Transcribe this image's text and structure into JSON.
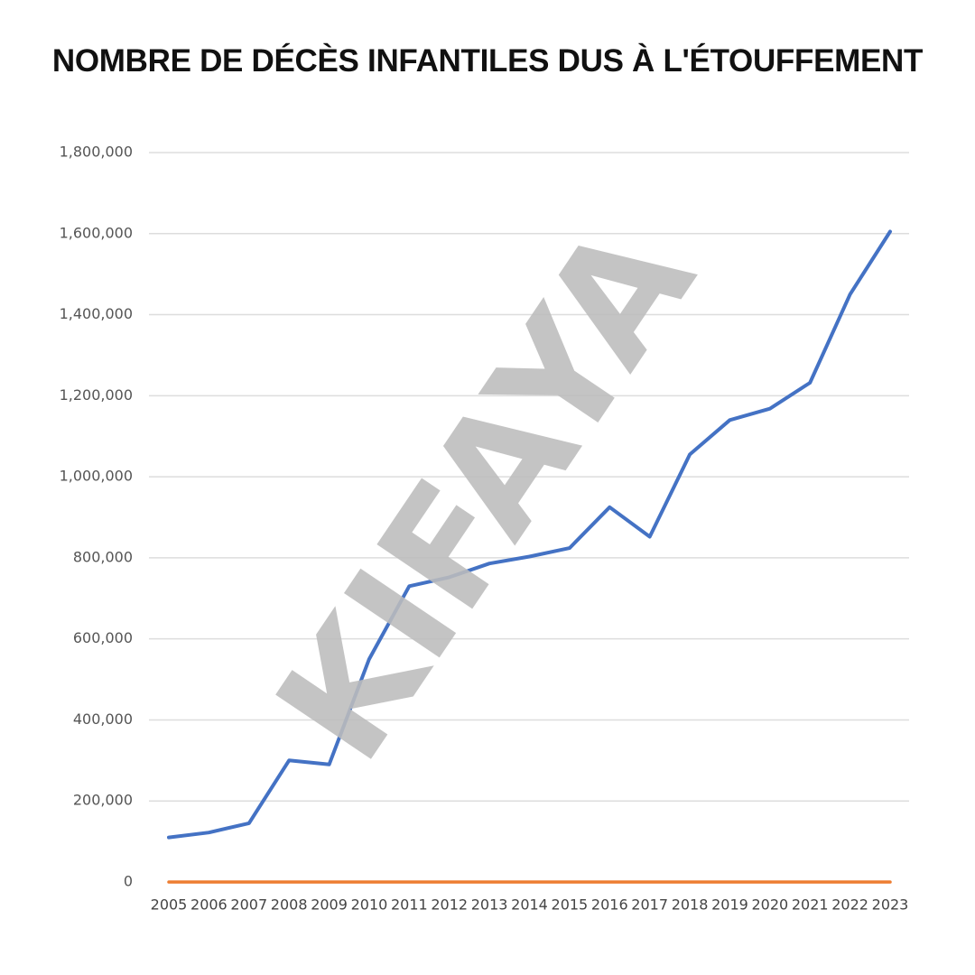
{
  "chart_data": {
    "type": "line",
    "title": "NOMBRE DE DÉCÈS INFANTILES DUS À L'ÉTOUFFEMENT",
    "xlabel": "",
    "ylabel": "",
    "ylim": [
      0,
      1800000
    ],
    "yticks": [
      0,
      200000,
      400000,
      600000,
      800000,
      1000000,
      1200000,
      1400000,
      1600000,
      1800000
    ],
    "ytick_labels": [
      "0",
      "200,000",
      "400,000",
      "600,000",
      "800,000",
      "1,000,000",
      "1,200,000",
      "1,400,000",
      "1,600,000",
      "1,800,000"
    ],
    "categories": [
      "2005",
      "2006",
      "2007",
      "2008",
      "2009",
      "2010",
      "2011",
      "2012",
      "2013",
      "2014",
      "2015",
      "2016",
      "2017",
      "2018",
      "2019",
      "2020",
      "2021",
      "2022",
      "2023"
    ],
    "series": [
      {
        "color": "#4472c4",
        "values": [
          110000,
          122000,
          145000,
          300000,
          290000,
          550000,
          730000,
          752000,
          786000,
          803000,
          824000,
          925000,
          852000,
          1055000,
          1140000,
          1168000,
          1232000,
          1450000,
          1605000
        ]
      },
      {
        "color": "#ed7d31",
        "values": [
          0,
          0,
          0,
          0,
          0,
          0,
          0,
          0,
          0,
          0,
          0,
          0,
          0,
          0,
          0,
          0,
          0,
          0,
          0
        ]
      }
    ],
    "grid": true,
    "legend": "none"
  },
  "colors": {
    "gridline": "#dddddd",
    "watermark": "#bdbdbd"
  },
  "watermark": {
    "text": "KIFAYA"
  }
}
